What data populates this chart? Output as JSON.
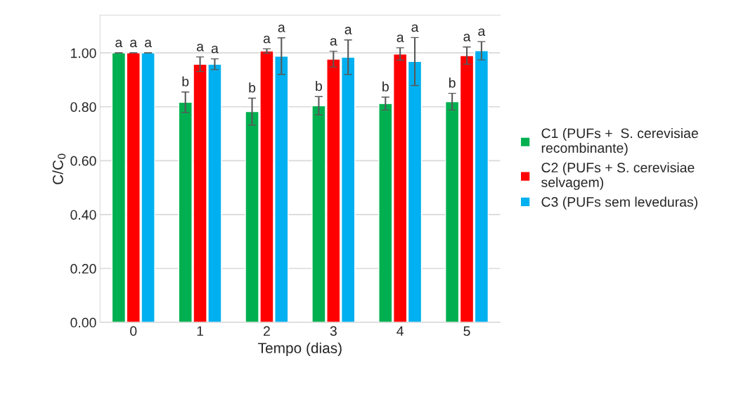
{
  "chart_data": {
    "type": "bar",
    "xlabel": "Tempo (dias)",
    "ylabel": "C/C$_{0}$",
    "categories": [
      "0",
      "1",
      "2",
      "3",
      "4",
      "5"
    ],
    "series": [
      {
        "name": "C1 (PUFs +  S. cerevisiae\nrecombinante)",
        "color": "#00b050",
        "values": [
          1.0,
          0.817,
          0.782,
          0.804,
          0.812,
          0.819
        ],
        "errors": [
          0,
          0.038,
          0.05,
          0.034,
          0.024,
          0.031
        ],
        "value_labels": [
          "a",
          "b",
          "b",
          "b",
          "b",
          "b"
        ]
      },
      {
        "name": "C2 (PUFs + S. cerevisiae\nselvagem)",
        "color": "#ff0000",
        "values": [
          1.0,
          0.958,
          1.007,
          0.977,
          0.996,
          0.99
        ],
        "errors": [
          0,
          0.027,
          0.008,
          0.029,
          0.023,
          0.032
        ],
        "value_labels": [
          "a",
          "a",
          "a",
          "a",
          "a",
          "a"
        ]
      },
      {
        "name": "C3 (PUFs sem leveduras)",
        "color": "#00b0f0",
        "values": [
          1.0,
          0.958,
          0.988,
          0.984,
          0.968,
          1.008
        ],
        "errors": [
          0,
          0.02,
          0.068,
          0.064,
          0.089,
          0.034
        ],
        "value_labels": [
          "a",
          "a",
          "a",
          "a",
          "a",
          "a"
        ]
      }
    ],
    "ylim": [
      0,
      1.14
    ],
    "yticks": [
      {
        "value": 0,
        "label": "0.00"
      },
      {
        "value": 0.2,
        "label": "0.20"
      },
      {
        "value": 0.4,
        "label": "0.40"
      },
      {
        "value": 0.6,
        "label": "0.60"
      },
      {
        "value": 0.8,
        "label": "0.80"
      },
      {
        "value": 1.0,
        "label": "1.00"
      }
    ],
    "grid": "y",
    "legend": "right"
  }
}
